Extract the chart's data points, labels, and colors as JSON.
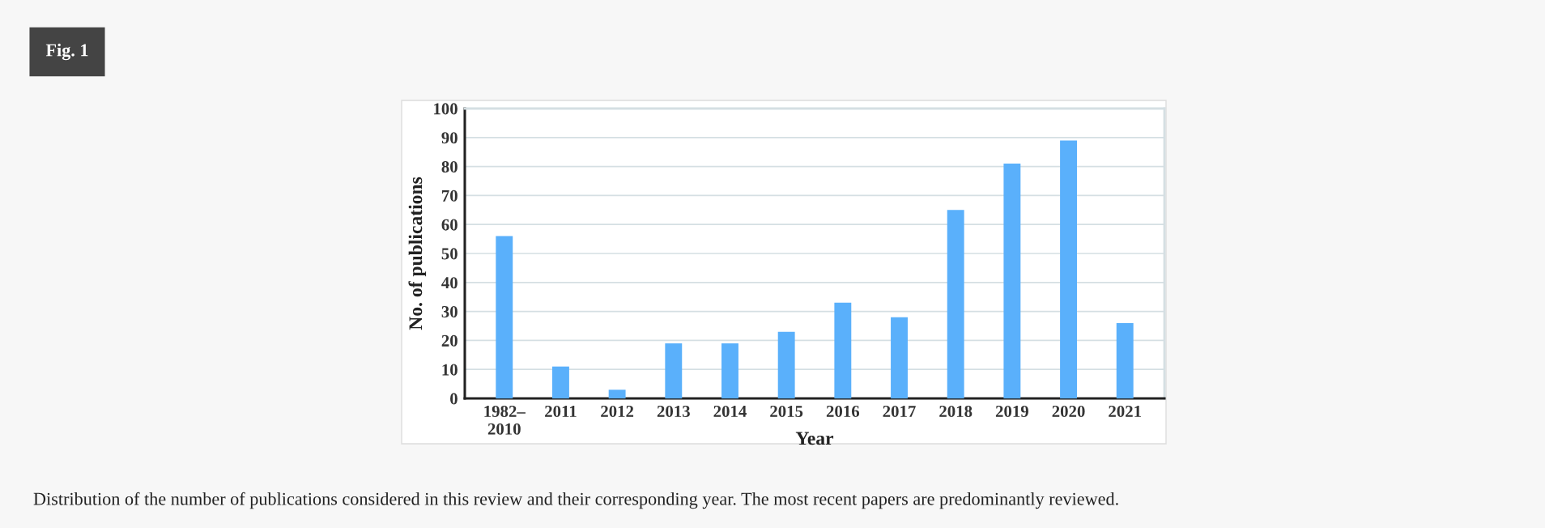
{
  "chart_data": {
    "type": "bar",
    "title": "Fig. 1",
    "categories": [
      "1982–\n2010",
      "2011",
      "2012",
      "2013",
      "2014",
      "2015",
      "2016",
      "2017",
      "2018",
      "2019",
      "2020",
      "2021"
    ],
    "values": [
      56,
      11,
      3,
      19,
      19,
      23,
      33,
      28,
      65,
      81,
      89,
      26
    ],
    "color": "#5ab0fb",
    "xlabel": "Year",
    "ylabel": "No. of publications",
    "ylim": [
      0,
      100
    ],
    "yticks": [
      0,
      10,
      20,
      30,
      40,
      50,
      60,
      70,
      80,
      90,
      100
    ],
    "grid": "y",
    "annotations": [
      "Distribution of the number of publications considered in this review and their corresponding year. The most recent papers are predominantly reviewed."
    ]
  }
}
